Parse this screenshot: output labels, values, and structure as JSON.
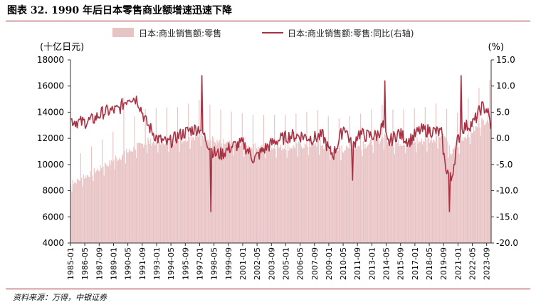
{
  "figure": {
    "title": "图表 32. 1990 年后日本零售商业额增速迅速下降",
    "source": "资料来源：万得，中银证券",
    "colors": {
      "bars": "#e8c3c4",
      "line": "#a83244",
      "accent": "#a01d2e"
    }
  },
  "chart_data": {
    "type": "bar+line",
    "left_axis": {
      "unit_label": "(十亿日元)",
      "ylim": [
        4000,
        18000
      ],
      "ticks": [
        "4000",
        "6000",
        "8000",
        "10000",
        "12000",
        "14000",
        "16000",
        "18000"
      ]
    },
    "right_axis": {
      "unit_label": "(%)",
      "ylim": [
        -20,
        15
      ],
      "ticks": [
        "-20.0",
        "-15.0",
        "-10.0",
        "-5.0",
        "0.0",
        "5.0",
        "10.0",
        "15.0"
      ]
    },
    "x_ticks": [
      "1985-01",
      "1986-05",
      "1987-09",
      "1989-01",
      "1990-05",
      "1991-09",
      "1993-01",
      "1994-05",
      "1995-09",
      "1997-01",
      "1998-05",
      "1999-09",
      "2001-01",
      "2002-05",
      "2003-09",
      "2005-01",
      "2006-05",
      "2007-09",
      "2009-01",
      "2010-05",
      "2011-09",
      "2013-01",
      "2014-05",
      "2015-09",
      "2017-01",
      "2018-05",
      "2019-09",
      "2021-01",
      "2022-05",
      "2023-09"
    ],
    "series": [
      {
        "name": "日本:商业销售额:零售",
        "kind": "bar",
        "axis": "left",
        "anchors": [
          [
            "1985-01",
            8500
          ],
          [
            "1988-01",
            9800
          ],
          [
            "1990-06",
            11000
          ],
          [
            "1992-01",
            11700
          ],
          [
            "1995-01",
            11800
          ],
          [
            "1997-03",
            12300
          ],
          [
            "1998-06",
            11700
          ],
          [
            "2000-01",
            11500
          ],
          [
            "2002-01",
            11300
          ],
          [
            "2005-01",
            11300
          ],
          [
            "2008-01",
            11600
          ],
          [
            "2009-06",
            11000
          ],
          [
            "2012-01",
            11400
          ],
          [
            "2014-03",
            12000
          ],
          [
            "2015-01",
            11600
          ],
          [
            "2018-01",
            11800
          ],
          [
            "2019-09",
            12200
          ],
          [
            "2020-05",
            10800
          ],
          [
            "2021-06",
            12000
          ],
          [
            "2023-09",
            13500
          ]
        ],
        "december_peak": 1.22,
        "spike": {
          "date": "1989-12",
          "value": 15100
        }
      },
      {
        "name": "日本:商业销售额:零售:同比(右轴)",
        "kind": "line",
        "axis": "right",
        "anchors": [
          [
            "1985-01",
            3.5
          ],
          [
            "1986-01",
            3.0
          ],
          [
            "1987-01",
            3.5
          ],
          [
            "1988-01",
            5.0
          ],
          [
            "1989-06",
            5.5
          ],
          [
            "1990-06",
            8.0
          ],
          [
            "1991-03",
            7.5
          ],
          [
            "1992-01",
            3.0
          ],
          [
            "1993-01",
            0.0
          ],
          [
            "1994-01",
            -1.0
          ],
          [
            "1995-01",
            0.5
          ],
          [
            "1996-01",
            1.5
          ],
          [
            "1997-01",
            2.0
          ],
          [
            "1998-01",
            -2.0
          ],
          [
            "1998-06",
            -3.0
          ],
          [
            "1999-01",
            -3.0
          ],
          [
            "2000-01",
            -1.5
          ],
          [
            "2001-01",
            -1.0
          ],
          [
            "2002-01",
            -4.0
          ],
          [
            "2003-01",
            -2.0
          ],
          [
            "2004-01",
            -0.5
          ],
          [
            "2005-06",
            0.5
          ],
          [
            "2006-06",
            0.5
          ],
          [
            "2007-06",
            0.0
          ],
          [
            "2008-06",
            0.5
          ],
          [
            "2009-01",
            -2.5
          ],
          [
            "2009-06",
            -3.0
          ],
          [
            "2010-06",
            2.5
          ],
          [
            "2011-03",
            -2.0
          ],
          [
            "2011-09",
            1.0
          ],
          [
            "2012-06",
            0.5
          ],
          [
            "2013-06",
            0.5
          ],
          [
            "2014-01",
            2.5
          ],
          [
            "2014-06",
            -1.0
          ],
          [
            "2015-06",
            1.0
          ],
          [
            "2016-06",
            -0.5
          ],
          [
            "2017-06",
            1.5
          ],
          [
            "2018-06",
            1.5
          ],
          [
            "2019-06",
            1.0
          ],
          [
            "2019-10",
            -5.0
          ],
          [
            "2020-05",
            -8.0
          ],
          [
            "2020-12",
            -0.5
          ],
          [
            "2021-06",
            2.0
          ],
          [
            "2022-06",
            3.0
          ],
          [
            "2023-03",
            6.0
          ],
          [
            "2023-09",
            5.5
          ],
          [
            "2024-01",
            2.5
          ]
        ],
        "spikes": [
          [
            "1997-03",
            12.0
          ],
          [
            "1998-01",
            -14.0
          ],
          [
            "2011-03",
            -8.0
          ],
          [
            "2014-03",
            11.0
          ],
          [
            "2020-03",
            -14.0
          ],
          [
            "2021-04",
            12.0
          ]
        ]
      }
    ]
  }
}
